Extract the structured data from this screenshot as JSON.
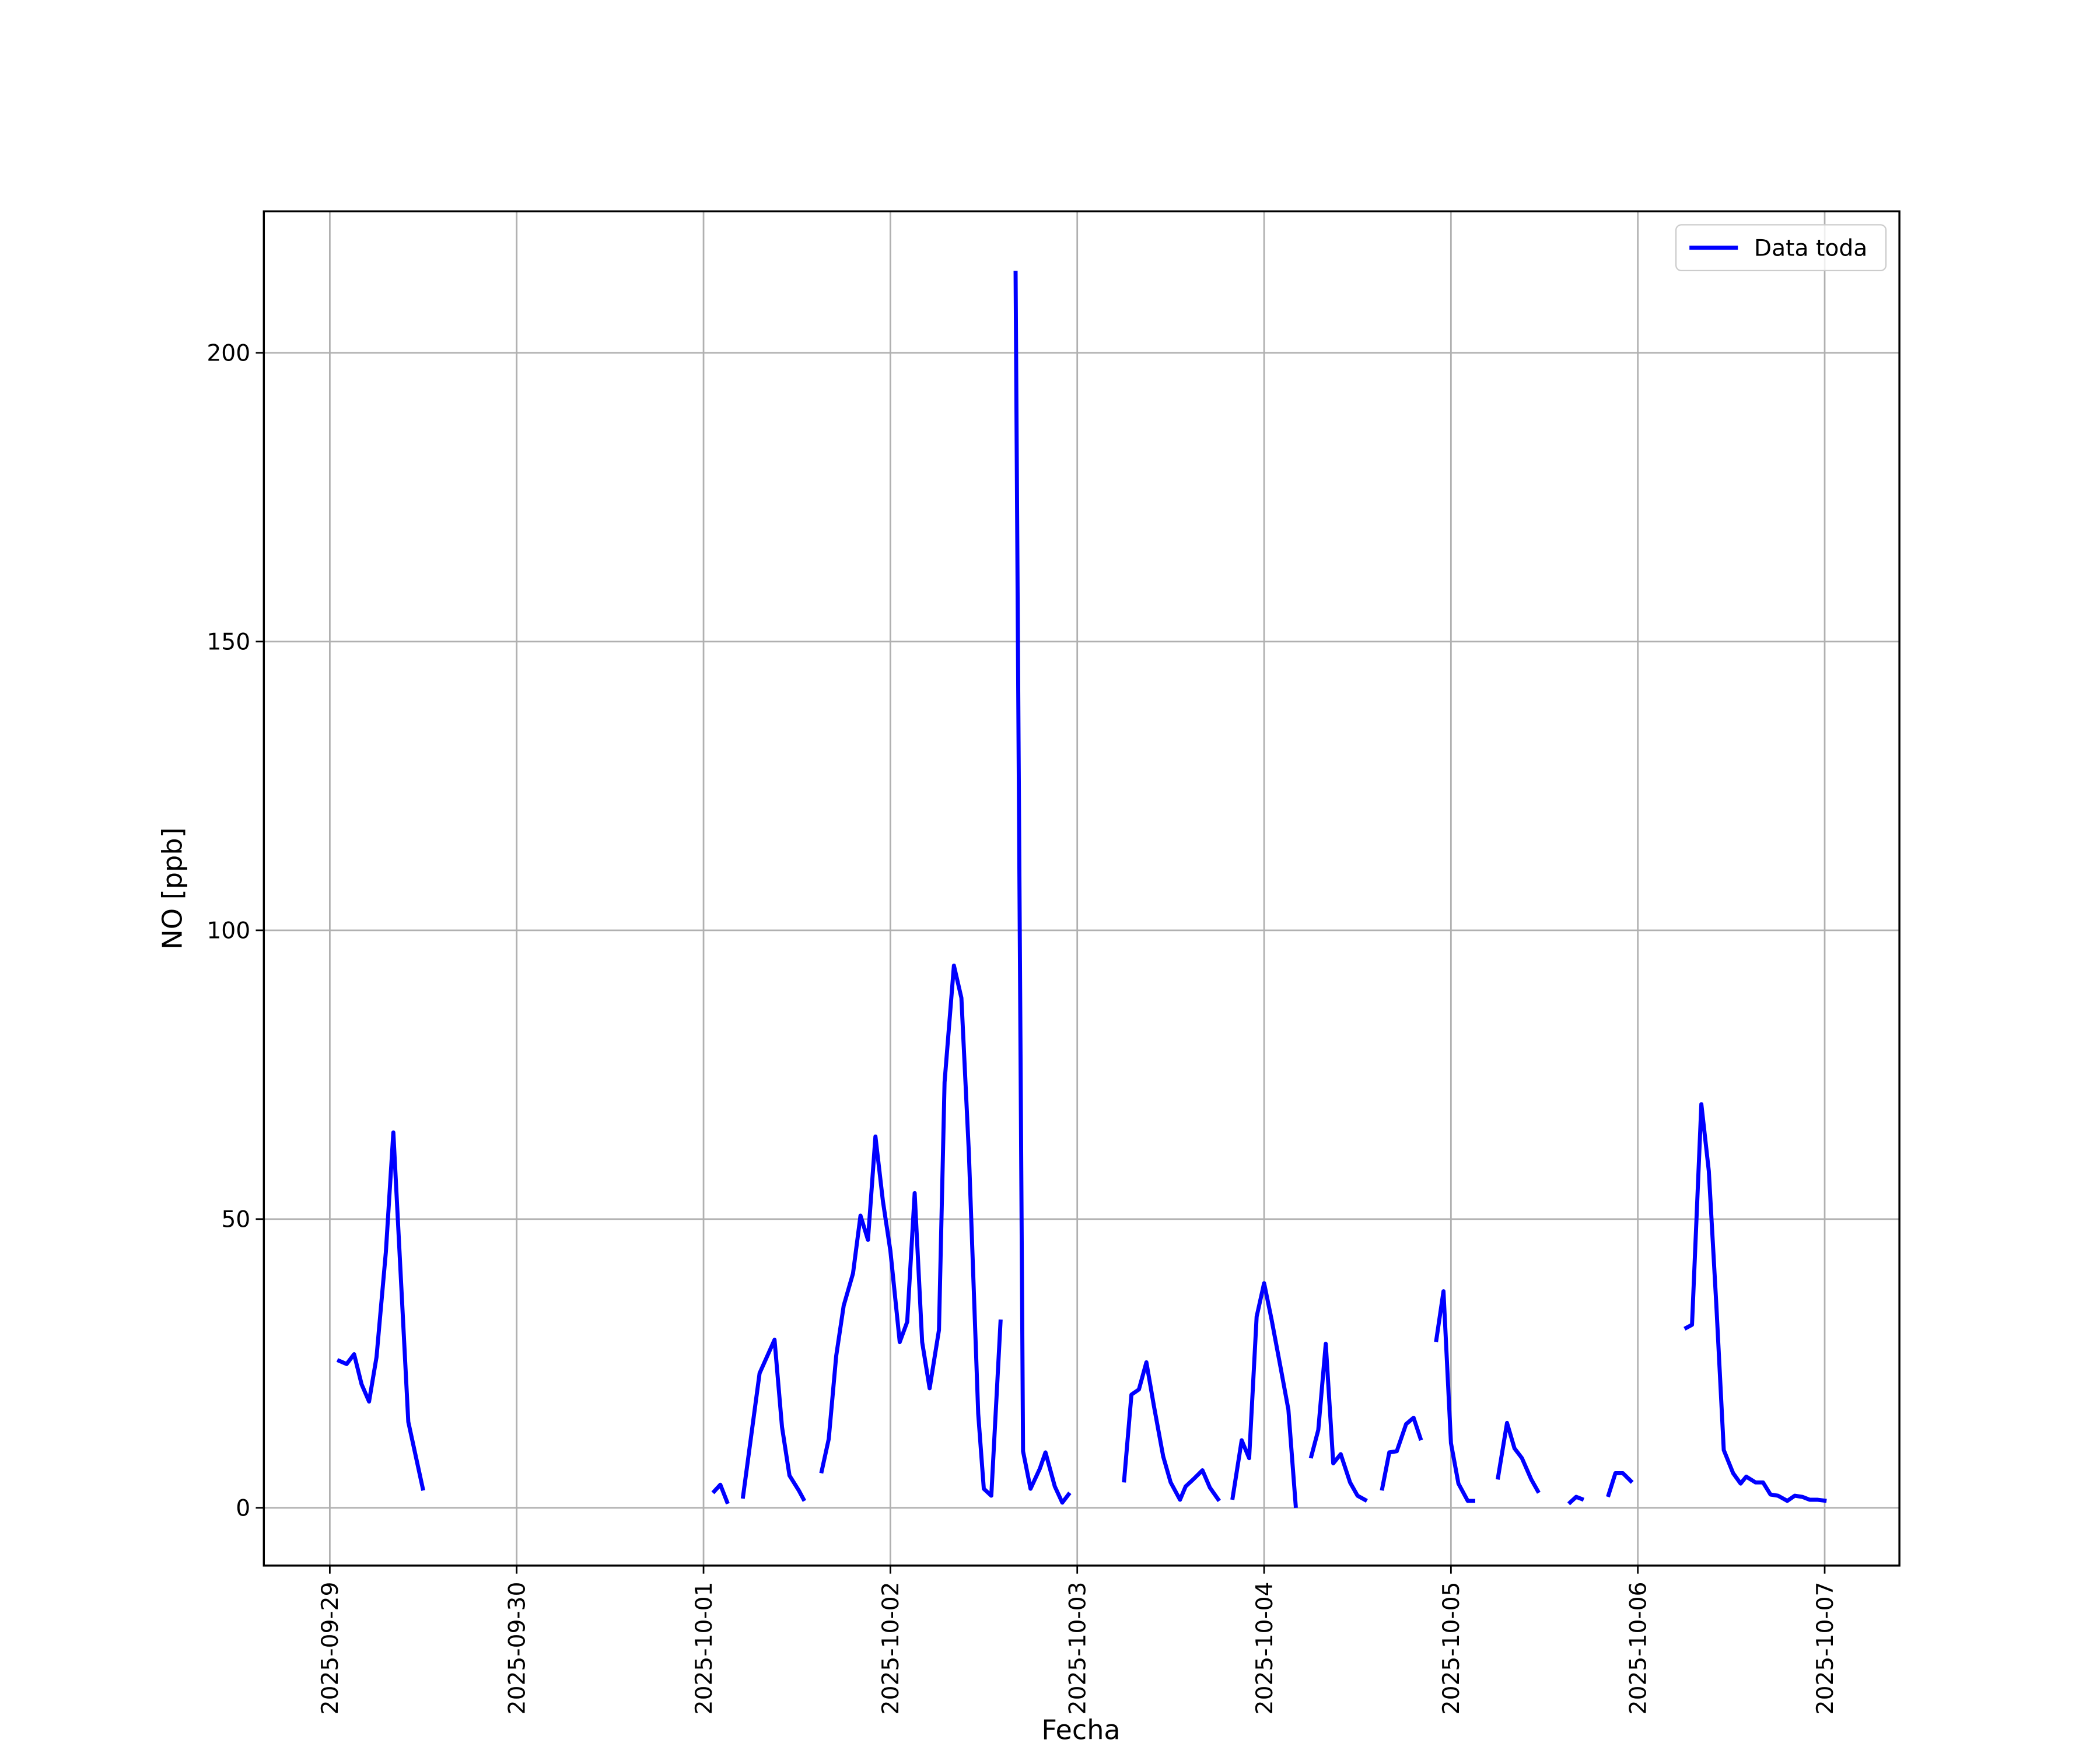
{
  "chart_data": {
    "type": "line",
    "x_label": "Fecha",
    "y_label": "NO [ppb]",
    "x": [
      0.04,
      0.09,
      0.13,
      0.17,
      0.21,
      0.25,
      0.3,
      0.34,
      0.42,
      0.5,
      1.0,
      2.05,
      2.09,
      2.13,
      2.17,
      2.21,
      2.3,
      2.38,
      2.42,
      2.46,
      2.51,
      2.54,
      2.58,
      2.63,
      2.67,
      2.71,
      2.75,
      2.8,
      2.84,
      2.88,
      2.92,
      2.96,
      3.0,
      3.05,
      3.09,
      3.13,
      3.17,
      3.21,
      3.26,
      3.29,
      3.34,
      3.38,
      3.42,
      3.47,
      3.5,
      3.54,
      3.59,
      3.63,
      3.67,
      3.71,
      3.75,
      3.8,
      3.83,
      3.88,
      3.92,
      3.96,
      4.1,
      4.25,
      4.29,
      4.33,
      4.37,
      4.41,
      4.46,
      4.5,
      4.55,
      4.58,
      4.62,
      4.67,
      4.71,
      4.76,
      4.8,
      4.83,
      4.88,
      4.92,
      4.96,
      5.0,
      5.04,
      5.09,
      5.13,
      5.17,
      5.2,
      5.25,
      5.29,
      5.33,
      5.37,
      5.41,
      5.46,
      5.5,
      5.55,
      5.6,
      5.63,
      5.67,
      5.71,
      5.76,
      5.8,
      5.84,
      5.88,
      5.92,
      5.96,
      6.0,
      6.04,
      6.09,
      6.13,
      6.2,
      6.25,
      6.3,
      6.34,
      6.38,
      6.43,
      6.47,
      6.55,
      6.63,
      6.67,
      6.71,
      6.75,
      6.84,
      6.88,
      6.92,
      6.97,
      7.1,
      7.25,
      7.29,
      7.34,
      7.38,
      7.42,
      7.46,
      7.51,
      7.55,
      7.58,
      7.63,
      7.67,
      7.71,
      7.75,
      7.8,
      7.84,
      7.88,
      7.92,
      7.96,
      8.01
    ],
    "series": [
      {
        "name": "Data toda",
        "color": "#0000ff",
        "values": [
          25.6,
          24.9,
          26.6,
          21.4,
          18.4,
          26.1,
          44.3,
          65,
          14.9,
          3.0,
          null,
          2.6,
          4,
          0.7,
          null,
          1.6,
          23.3,
          29.1,
          14,
          5.6,
          3,
          1.2,
          null,
          6,
          11.9,
          26.3,
          35,
          40.6,
          50.6,
          46.4,
          64.3,
          53.1,
          44.5,
          28.7,
          32.2,
          54.5,
          28.7,
          20.7,
          30.8,
          73.7,
          93.9,
          88.3,
          61.5,
          16.3,
          3.3,
          2.1,
          32.6,
          null,
          214.2,
          9.8,
          3.3,
          6.8,
          9.6,
          3.7,
          0.9,
          2.6,
          null,
          4.4,
          19.6,
          20.5,
          25.2,
          17.7,
          8.9,
          4.4,
          1.4,
          3.7,
          4.9,
          6.5,
          3.5,
          1.2,
          null,
          1.4,
          11.7,
          8.6,
          33.1,
          38.9,
          32.6,
          24,
          17,
          0,
          null,
          8.6,
          13.5,
          28.4,
          7.7,
          9.3,
          4.4,
          2.1,
          1.2,
          null,
          3,
          9.6,
          9.8,
          14.5,
          15.6,
          11.7,
          null,
          28.7,
          37.5,
          11.2,
          4.2,
          1.2,
          1.2,
          null,
          4.9,
          14.7,
          10.3,
          8.6,
          4.9,
          2.6,
          null,
          0.7,
          1.9,
          1.4,
          null,
          1.9,
          6,
          6,
          4.4,
          null,
          31,
          31.7,
          69.9,
          58.3,
          35.2,
          10,
          6,
          4.2,
          5.4,
          4.4,
          4.4,
          2.3,
          2.1,
          1.2,
          2.1,
          1.9,
          1.4,
          1.4,
          1.2
        ]
      }
    ],
    "xlim": [
      -0.353,
      8.4
    ],
    "xticks": [
      {
        "value": 0,
        "label": "2025-09-29"
      },
      {
        "value": 1,
        "label": "2025-09-30"
      },
      {
        "value": 2,
        "label": "2025-10-01"
      },
      {
        "value": 3,
        "label": "2025-10-02"
      },
      {
        "value": 4,
        "label": "2025-10-03"
      },
      {
        "value": 5,
        "label": "2025-10-04"
      },
      {
        "value": 6,
        "label": "2025-10-05"
      },
      {
        "value": 7,
        "label": "2025-10-06"
      },
      {
        "value": 8,
        "label": "2025-10-07"
      }
    ],
    "ylim": [
      -10,
      224.5
    ],
    "yticks": [
      0,
      50,
      100,
      150,
      200
    ],
    "grid": true,
    "legend": "upper-right"
  }
}
